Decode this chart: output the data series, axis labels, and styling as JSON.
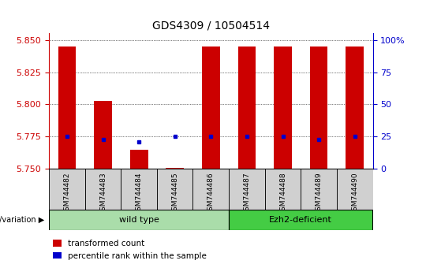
{
  "title": "GDS4309 / 10504514",
  "samples": [
    "GSM744482",
    "GSM744483",
    "GSM744484",
    "GSM744485",
    "GSM744486",
    "GSM744487",
    "GSM744488",
    "GSM744489",
    "GSM744490"
  ],
  "red_values": [
    5.845,
    5.803,
    5.765,
    5.751,
    5.845,
    5.845,
    5.845,
    5.845,
    5.845
  ],
  "blue_values": [
    5.775,
    5.773,
    5.771,
    5.775,
    5.775,
    5.775,
    5.775,
    5.773,
    5.775
  ],
  "ymin": 5.75,
  "ymax": 5.855,
  "yticks": [
    5.75,
    5.775,
    5.8,
    5.825,
    5.85
  ],
  "right_ytick_pcts": [
    0,
    25,
    50,
    75,
    100
  ],
  "groups": [
    {
      "label": "wild type",
      "start": 0,
      "end": 5,
      "color": "#aaddaa"
    },
    {
      "label": "Ezh2-deficient",
      "start": 5,
      "end": 9,
      "color": "#44cc44"
    }
  ],
  "bar_color": "#cc0000",
  "dot_color": "#0000cc",
  "label_color_red": "#cc0000",
  "label_color_blue": "#0000cc",
  "legend_red": "transformed count",
  "legend_blue": "percentile rank within the sample",
  "group_label": "genotype/variation",
  "tick_fontsize": 8,
  "title_fontsize": 10
}
